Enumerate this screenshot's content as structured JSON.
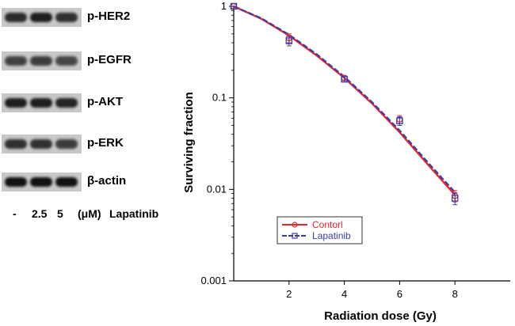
{
  "blot": {
    "rows": [
      {
        "label": "p-HER2",
        "intensity": [
          0.75,
          0.85,
          0.7
        ]
      },
      {
        "label": "p-EGFR",
        "intensity": [
          0.55,
          0.6,
          0.5
        ]
      },
      {
        "label": "p-AKT",
        "intensity": [
          0.85,
          0.85,
          0.8
        ]
      },
      {
        "label": "p-ERK",
        "intensity": [
          0.7,
          0.7,
          0.6
        ]
      },
      {
        "label": "β-actin",
        "intensity": [
          0.95,
          0.95,
          0.95
        ]
      }
    ],
    "lanes": {
      "dash": "-",
      "c1": "2.5",
      "c2": "5",
      "unit": "(μM)",
      "drug": "Lapatinib"
    }
  },
  "chart_data": {
    "type": "line",
    "xlabel": "Radiation dose (Gy)",
    "ylabel": "Surviving fraction",
    "yscale": "log",
    "xlim": [
      0,
      10
    ],
    "ylim": [
      0.001,
      1
    ],
    "xticks": [
      2,
      4,
      6,
      8
    ],
    "xtick_labels": [
      "2",
      "4",
      "6",
      "8"
    ],
    "yticks": [
      0.001,
      0.01,
      0.1,
      1
    ],
    "ytick_labels": [
      "0.001",
      "0.01",
      "0.1",
      "1"
    ],
    "series": [
      {
        "name": "Contorl",
        "color": "#e8262c",
        "marker": "circle",
        "x": [
          0,
          2,
          4,
          6,
          8
        ],
        "y": [
          1.0,
          0.45,
          0.165,
          0.058,
          0.0085
        ],
        "err": [
          0,
          0.05,
          0.01,
          0.006,
          0.0012
        ],
        "fit": [
          [
            0,
            1.0
          ],
          [
            1,
            0.73
          ],
          [
            2,
            0.48
          ],
          [
            3,
            0.29
          ],
          [
            4,
            0.165
          ],
          [
            5,
            0.087
          ],
          [
            6,
            0.042
          ],
          [
            7,
            0.019
          ],
          [
            8,
            0.0087
          ]
        ]
      },
      {
        "name": "Lapatinib",
        "color": "#3a3fa8",
        "marker": "square",
        "x": [
          0,
          2,
          4,
          6,
          8
        ],
        "y": [
          1.0,
          0.42,
          0.16,
          0.056,
          0.008
        ],
        "err": [
          0,
          0.05,
          0.01,
          0.006,
          0.0012
        ],
        "fit": [
          [
            0,
            1.0
          ],
          [
            1,
            0.74
          ],
          [
            2,
            0.49
          ],
          [
            3,
            0.3
          ],
          [
            4,
            0.17
          ],
          [
            5,
            0.09
          ],
          [
            6,
            0.044
          ],
          [
            7,
            0.02
          ],
          [
            8,
            0.0093
          ]
        ]
      }
    ],
    "legend_position": "lower-left"
  }
}
